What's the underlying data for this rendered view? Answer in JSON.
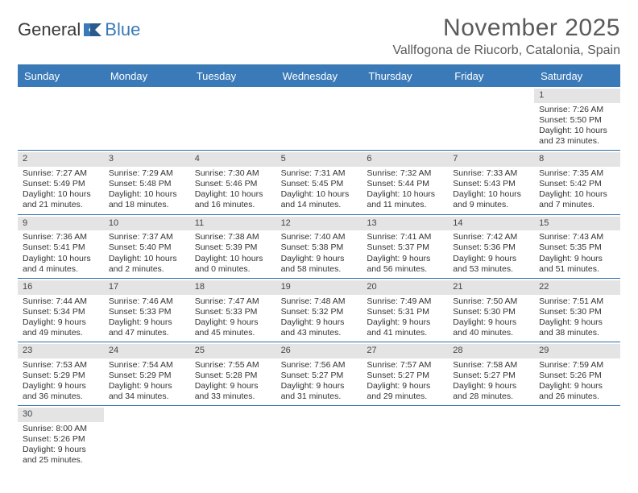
{
  "brand": {
    "part1": "General",
    "part2": "Blue"
  },
  "title": "November 2025",
  "location": "Vallfogona de Riucorb, Catalonia, Spain",
  "colors": {
    "header_bg": "#3a7ab8",
    "row_border": "#2f6da8",
    "daynum_bg": "#e4e4e4",
    "text": "#333333",
    "title_text": "#5a5a5a"
  },
  "daynames": [
    "Sunday",
    "Monday",
    "Tuesday",
    "Wednesday",
    "Thursday",
    "Friday",
    "Saturday"
  ],
  "weeks": [
    [
      null,
      null,
      null,
      null,
      null,
      null,
      {
        "n": "1",
        "sunrise": "Sunrise: 7:26 AM",
        "sunset": "Sunset: 5:50 PM",
        "day1": "Daylight: 10 hours",
        "day2": "and 23 minutes."
      }
    ],
    [
      {
        "n": "2",
        "sunrise": "Sunrise: 7:27 AM",
        "sunset": "Sunset: 5:49 PM",
        "day1": "Daylight: 10 hours",
        "day2": "and 21 minutes."
      },
      {
        "n": "3",
        "sunrise": "Sunrise: 7:29 AM",
        "sunset": "Sunset: 5:48 PM",
        "day1": "Daylight: 10 hours",
        "day2": "and 18 minutes."
      },
      {
        "n": "4",
        "sunrise": "Sunrise: 7:30 AM",
        "sunset": "Sunset: 5:46 PM",
        "day1": "Daylight: 10 hours",
        "day2": "and 16 minutes."
      },
      {
        "n": "5",
        "sunrise": "Sunrise: 7:31 AM",
        "sunset": "Sunset: 5:45 PM",
        "day1": "Daylight: 10 hours",
        "day2": "and 14 minutes."
      },
      {
        "n": "6",
        "sunrise": "Sunrise: 7:32 AM",
        "sunset": "Sunset: 5:44 PM",
        "day1": "Daylight: 10 hours",
        "day2": "and 11 minutes."
      },
      {
        "n": "7",
        "sunrise": "Sunrise: 7:33 AM",
        "sunset": "Sunset: 5:43 PM",
        "day1": "Daylight: 10 hours",
        "day2": "and 9 minutes."
      },
      {
        "n": "8",
        "sunrise": "Sunrise: 7:35 AM",
        "sunset": "Sunset: 5:42 PM",
        "day1": "Daylight: 10 hours",
        "day2": "and 7 minutes."
      }
    ],
    [
      {
        "n": "9",
        "sunrise": "Sunrise: 7:36 AM",
        "sunset": "Sunset: 5:41 PM",
        "day1": "Daylight: 10 hours",
        "day2": "and 4 minutes."
      },
      {
        "n": "10",
        "sunrise": "Sunrise: 7:37 AM",
        "sunset": "Sunset: 5:40 PM",
        "day1": "Daylight: 10 hours",
        "day2": "and 2 minutes."
      },
      {
        "n": "11",
        "sunrise": "Sunrise: 7:38 AM",
        "sunset": "Sunset: 5:39 PM",
        "day1": "Daylight: 10 hours",
        "day2": "and 0 minutes."
      },
      {
        "n": "12",
        "sunrise": "Sunrise: 7:40 AM",
        "sunset": "Sunset: 5:38 PM",
        "day1": "Daylight: 9 hours",
        "day2": "and 58 minutes."
      },
      {
        "n": "13",
        "sunrise": "Sunrise: 7:41 AM",
        "sunset": "Sunset: 5:37 PM",
        "day1": "Daylight: 9 hours",
        "day2": "and 56 minutes."
      },
      {
        "n": "14",
        "sunrise": "Sunrise: 7:42 AM",
        "sunset": "Sunset: 5:36 PM",
        "day1": "Daylight: 9 hours",
        "day2": "and 53 minutes."
      },
      {
        "n": "15",
        "sunrise": "Sunrise: 7:43 AM",
        "sunset": "Sunset: 5:35 PM",
        "day1": "Daylight: 9 hours",
        "day2": "and 51 minutes."
      }
    ],
    [
      {
        "n": "16",
        "sunrise": "Sunrise: 7:44 AM",
        "sunset": "Sunset: 5:34 PM",
        "day1": "Daylight: 9 hours",
        "day2": "and 49 minutes."
      },
      {
        "n": "17",
        "sunrise": "Sunrise: 7:46 AM",
        "sunset": "Sunset: 5:33 PM",
        "day1": "Daylight: 9 hours",
        "day2": "and 47 minutes."
      },
      {
        "n": "18",
        "sunrise": "Sunrise: 7:47 AM",
        "sunset": "Sunset: 5:33 PM",
        "day1": "Daylight: 9 hours",
        "day2": "and 45 minutes."
      },
      {
        "n": "19",
        "sunrise": "Sunrise: 7:48 AM",
        "sunset": "Sunset: 5:32 PM",
        "day1": "Daylight: 9 hours",
        "day2": "and 43 minutes."
      },
      {
        "n": "20",
        "sunrise": "Sunrise: 7:49 AM",
        "sunset": "Sunset: 5:31 PM",
        "day1": "Daylight: 9 hours",
        "day2": "and 41 minutes."
      },
      {
        "n": "21",
        "sunrise": "Sunrise: 7:50 AM",
        "sunset": "Sunset: 5:30 PM",
        "day1": "Daylight: 9 hours",
        "day2": "and 40 minutes."
      },
      {
        "n": "22",
        "sunrise": "Sunrise: 7:51 AM",
        "sunset": "Sunset: 5:30 PM",
        "day1": "Daylight: 9 hours",
        "day2": "and 38 minutes."
      }
    ],
    [
      {
        "n": "23",
        "sunrise": "Sunrise: 7:53 AM",
        "sunset": "Sunset: 5:29 PM",
        "day1": "Daylight: 9 hours",
        "day2": "and 36 minutes."
      },
      {
        "n": "24",
        "sunrise": "Sunrise: 7:54 AM",
        "sunset": "Sunset: 5:29 PM",
        "day1": "Daylight: 9 hours",
        "day2": "and 34 minutes."
      },
      {
        "n": "25",
        "sunrise": "Sunrise: 7:55 AM",
        "sunset": "Sunset: 5:28 PM",
        "day1": "Daylight: 9 hours",
        "day2": "and 33 minutes."
      },
      {
        "n": "26",
        "sunrise": "Sunrise: 7:56 AM",
        "sunset": "Sunset: 5:27 PM",
        "day1": "Daylight: 9 hours",
        "day2": "and 31 minutes."
      },
      {
        "n": "27",
        "sunrise": "Sunrise: 7:57 AM",
        "sunset": "Sunset: 5:27 PM",
        "day1": "Daylight: 9 hours",
        "day2": "and 29 minutes."
      },
      {
        "n": "28",
        "sunrise": "Sunrise: 7:58 AM",
        "sunset": "Sunset: 5:27 PM",
        "day1": "Daylight: 9 hours",
        "day2": "and 28 minutes."
      },
      {
        "n": "29",
        "sunrise": "Sunrise: 7:59 AM",
        "sunset": "Sunset: 5:26 PM",
        "day1": "Daylight: 9 hours",
        "day2": "and 26 minutes."
      }
    ],
    [
      {
        "n": "30",
        "sunrise": "Sunrise: 8:00 AM",
        "sunset": "Sunset: 5:26 PM",
        "day1": "Daylight: 9 hours",
        "day2": "and 25 minutes."
      },
      null,
      null,
      null,
      null,
      null,
      null
    ]
  ]
}
